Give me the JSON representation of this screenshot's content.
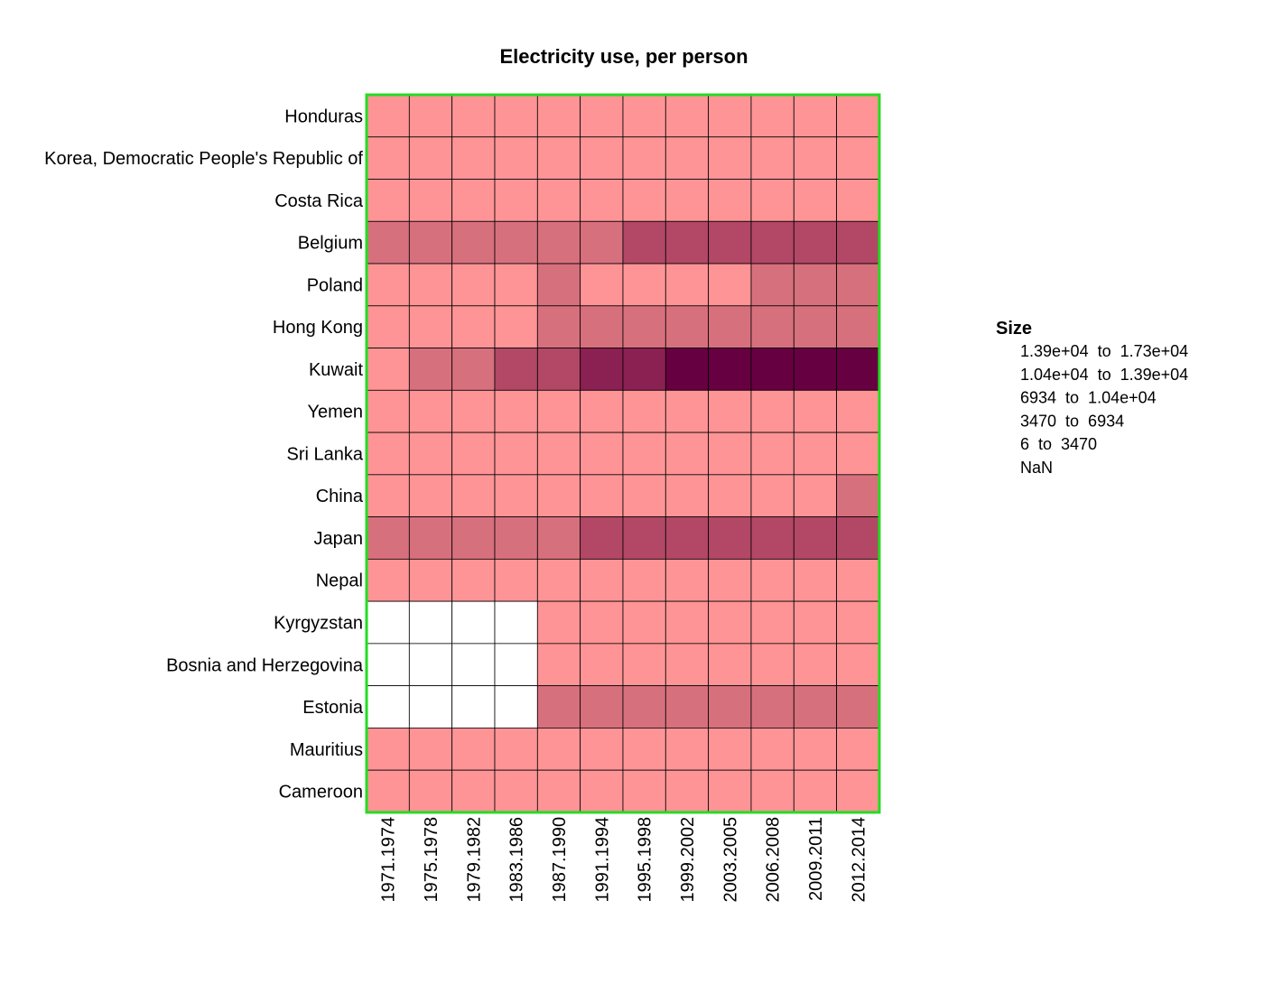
{
  "chart_data": {
    "type": "heatmap",
    "title": "Electricity use, per person",
    "rows": [
      "Honduras",
      "Korea, Democratic People's Republic of",
      "Costa Rica",
      "Belgium",
      "Poland",
      "Hong Kong",
      "Kuwait",
      "Yemen",
      "Sri Lanka",
      "China",
      "Japan",
      "Nepal",
      "Kyrgyzstan",
      "Bosnia and Herzegovina",
      "Estonia",
      "Mauritius",
      "Cameroon"
    ],
    "columns": [
      "1971.1974",
      "1975.1978",
      "1979.1982",
      "1983.1986",
      "1987.1990",
      "1991.1994",
      "1995.1998",
      "1999.2002",
      "2003.2005",
      "2006.2008",
      "2009.2011",
      "2012.2014"
    ],
    "bin_index_note_levels": "0=NaN,1=6 to 3470,2=3470 to 6934,3=6934 to 1.04e+04,4=1.04e+04 to 1.39e+04,5=1.39e+04 to 1.73e+04",
    "cells": [
      [
        1,
        1,
        1,
        1,
        1,
        1,
        1,
        1,
        1,
        1,
        1,
        1
      ],
      [
        1,
        1,
        1,
        1,
        1,
        1,
        1,
        1,
        1,
        1,
        1,
        1
      ],
      [
        1,
        1,
        1,
        1,
        1,
        1,
        1,
        1,
        1,
        1,
        1,
        1
      ],
      [
        2,
        2,
        2,
        2,
        2,
        2,
        3,
        3,
        3,
        3,
        3,
        3
      ],
      [
        1,
        1,
        1,
        1,
        2,
        1,
        1,
        1,
        1,
        2,
        2,
        2
      ],
      [
        1,
        1,
        1,
        1,
        2,
        2,
        2,
        2,
        2,
        2,
        2,
        2
      ],
      [
        1,
        2,
        2,
        3,
        3,
        4,
        4,
        5,
        5,
        5,
        5,
        5
      ],
      [
        1,
        1,
        1,
        1,
        1,
        1,
        1,
        1,
        1,
        1,
        1,
        1
      ],
      [
        1,
        1,
        1,
        1,
        1,
        1,
        1,
        1,
        1,
        1,
        1,
        1
      ],
      [
        1,
        1,
        1,
        1,
        1,
        1,
        1,
        1,
        1,
        1,
        1,
        2
      ],
      [
        2,
        2,
        2,
        2,
        2,
        3,
        3,
        3,
        3,
        3,
        3,
        3
      ],
      [
        1,
        1,
        1,
        1,
        1,
        1,
        1,
        1,
        1,
        1,
        1,
        1
      ],
      [
        0,
        0,
        0,
        0,
        1,
        1,
        1,
        1,
        1,
        1,
        1,
        1
      ],
      [
        0,
        0,
        0,
        0,
        1,
        1,
        1,
        1,
        1,
        1,
        1,
        1
      ],
      [
        0,
        0,
        0,
        0,
        2,
        2,
        2,
        2,
        2,
        2,
        2,
        2
      ],
      [
        1,
        1,
        1,
        1,
        1,
        1,
        1,
        1,
        1,
        1,
        1,
        1
      ],
      [
        1,
        1,
        1,
        1,
        1,
        1,
        1,
        1,
        1,
        1,
        1,
        1
      ]
    ],
    "legend": {
      "title": "Size",
      "items": [
        {
          "label": "1.39e+04  to  1.73e+04",
          "color": "#670041"
        },
        {
          "label": "1.04e+04  to  1.39e+04",
          "color": "#8b2052"
        },
        {
          "label": "6934  to  1.04e+04",
          "color": "#b24866"
        },
        {
          "label": "3470  to  6934",
          "color": "#d7707d"
        },
        {
          "label": "6  to  3470",
          "color": "#ff9496"
        },
        {
          "label": "NaN",
          "color": "#ffffff"
        }
      ]
    },
    "bin_colors": [
      "#ffffff",
      "#ff9496",
      "#d7707d",
      "#b24866",
      "#8b2052",
      "#670041"
    ],
    "border_color": "#22dd22",
    "grid_line_color": "#000000"
  }
}
